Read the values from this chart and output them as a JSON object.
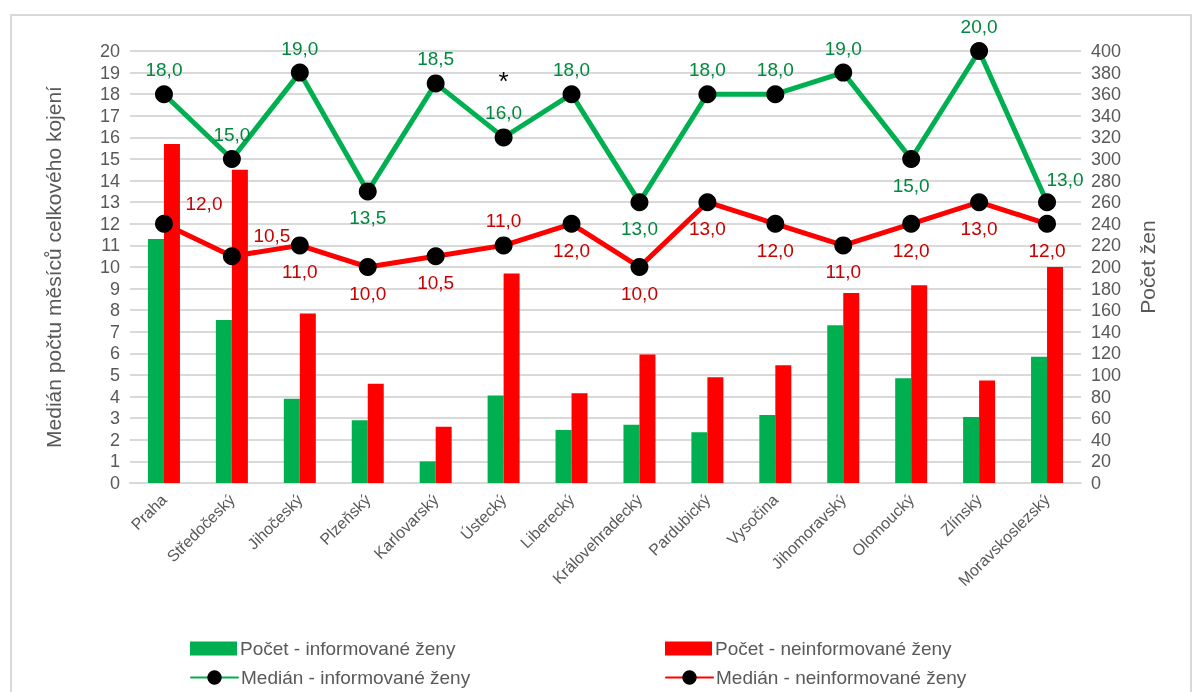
{
  "chart_data": {
    "type": "bar",
    "categories": [
      "Praha",
      "Středočeský",
      "Jihočeský",
      "Plzeňský",
      "Karlovarský",
      "Ústecký",
      "Liberecký",
      "Královehradecký",
      "Pardubický",
      "Vysočina",
      "Jihomoravský",
      "Olomoucký",
      "Zlínský",
      "Moravskoslezský"
    ],
    "ylabel": "Medián počtu měsíců celkového kojení",
    "y2label": "Počet žen",
    "ylim": [
      0,
      20
    ],
    "yticks": [
      0,
      1,
      2,
      3,
      4,
      5,
      6,
      7,
      8,
      9,
      10,
      11,
      12,
      13,
      14,
      15,
      16,
      17,
      18,
      19,
      20
    ],
    "y2lim": [
      0,
      400
    ],
    "y2ticks": [
      0,
      20,
      40,
      60,
      80,
      100,
      120,
      140,
      160,
      180,
      200,
      220,
      240,
      260,
      280,
      300,
      320,
      340,
      360,
      380,
      400
    ],
    "grid": "y",
    "legend": "bottom",
    "marker": "circle",
    "line_style": "solid",
    "annotations": [
      {
        "text": "*",
        "x": "Ústecký",
        "y": 16
      }
    ],
    "series": [
      {
        "name": "Počet - informované ženy",
        "axis": "y2",
        "color": "#00b050",
        "values": [
          226,
          151,
          78,
          58,
          20,
          81,
          49,
          54,
          47,
          63,
          146,
          97,
          61,
          117
        ]
      },
      {
        "name": "Počet - neinformované ženy",
        "axis": "y2",
        "color": "#ff0000",
        "values": [
          314,
          290,
          157,
          92,
          52,
          194,
          83,
          119,
          98,
          109,
          176,
          183,
          95,
          200
        ]
      },
      {
        "name": "Medián - informované ženy",
        "type": "line",
        "color": "#00b050",
        "values": [
          18,
          15,
          19,
          13.5,
          18.5,
          16,
          18,
          13,
          18,
          18,
          19,
          15,
          20,
          13
        ],
        "value_labels": [
          "18,0",
          "15,0",
          "19,0",
          "13,5",
          "18,5",
          "16,0",
          "18,0",
          "13,0",
          "18,0",
          "18,0",
          "19,0",
          "15,0",
          "20,0",
          "13,0"
        ]
      },
      {
        "name": "Medián - neinformované ženy",
        "type": "line",
        "color": "#ff0000",
        "values": [
          12,
          10.5,
          11,
          10,
          10.5,
          11,
          12,
          10,
          13,
          12,
          11,
          12,
          13,
          12
        ],
        "value_labels": [
          "12,0",
          "10,5",
          "11,0",
          "10,0",
          "10,5",
          "11,0",
          "12,0",
          "10,0",
          "13,0",
          "12,0",
          "11,0",
          "12,0",
          "13,0",
          "12,0"
        ]
      }
    ]
  }
}
